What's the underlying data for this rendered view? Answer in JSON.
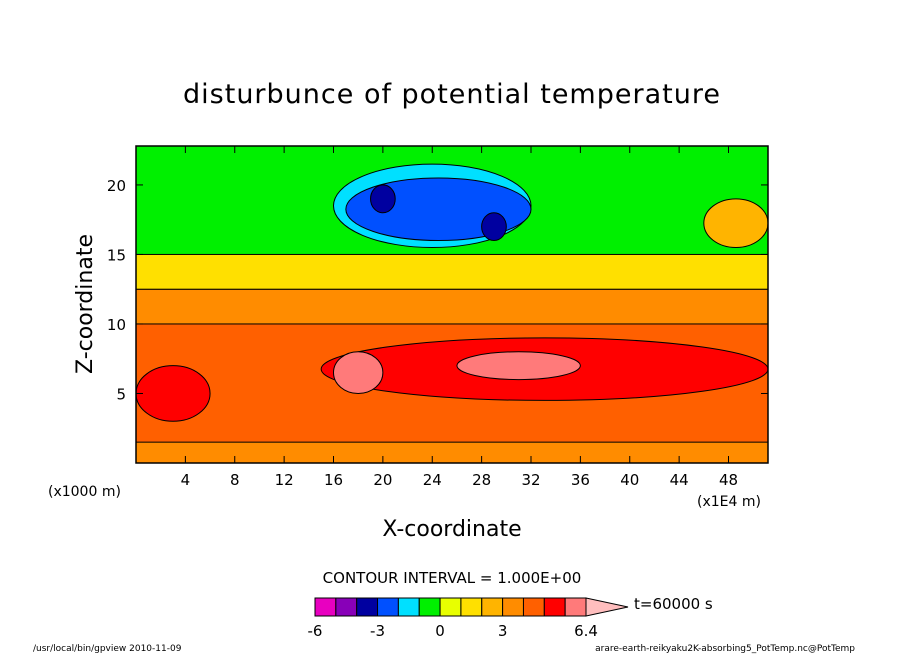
{
  "chart_data": {
    "type": "heatmap",
    "title": "disturbunce of potential temperature",
    "xlabel": "X-coordinate",
    "ylabel": "Z-coordinate",
    "x_ticks": [
      "4",
      "8",
      "12",
      "16",
      "20",
      "24",
      "28",
      "32",
      "36",
      "40",
      "44",
      "48"
    ],
    "y_ticks": [
      "5",
      "10",
      "15",
      "20"
    ],
    "x_tick_values": [
      4,
      8,
      12,
      16,
      20,
      24,
      28,
      32,
      36,
      40,
      44,
      48
    ],
    "y_tick_values": [
      5,
      10,
      15,
      20
    ],
    "xlim": [
      0,
      51.2
    ],
    "ylim": [
      0,
      22.8
    ],
    "x_unit_label": "(x1000 m)",
    "x_scale_label": "(x1E4 m)",
    "contour_interval_label": "CONTOUR INTERVAL = 1.000E+00",
    "time_label": "t=60000 s",
    "colorbar": {
      "tick_labels": [
        "-6",
        "-3",
        "0",
        "3",
        "6.4"
      ],
      "tick_values": [
        -6,
        -3,
        0,
        3,
        6.4
      ],
      "levels": [
        -6,
        -5,
        -4,
        -3,
        -2,
        -1,
        0,
        1,
        2,
        3,
        4,
        5,
        6
      ],
      "colors": [
        "#e800c0",
        "#8800b8",
        "#0000a0",
        "#0050ff",
        "#00e0ff",
        "#00f000",
        "#e8ff00",
        "#ffe000",
        "#ffb400",
        "#ff8c00",
        "#ff6000",
        "#ff0000",
        "#ff7a7a",
        "#ffbebe"
      ]
    },
    "regions": [
      {
        "value": 3,
        "x": [
          0,
          51.2
        ],
        "z": [
          0,
          12.5
        ]
      },
      {
        "value": 4,
        "x": [
          0,
          51.2
        ],
        "z": [
          1.5,
          10
        ]
      },
      {
        "value": 5,
        "x": [
          0,
          6
        ],
        "z": [
          3,
          7
        ]
      },
      {
        "value": 5,
        "x": [
          15,
          51.2
        ],
        "z": [
          4.5,
          9
        ]
      },
      {
        "value": 6,
        "x": [
          16,
          20
        ],
        "z": [
          5,
          8
        ]
      },
      {
        "value": 6,
        "x": [
          26,
          36
        ],
        "z": [
          6,
          8
        ]
      },
      {
        "value": 1,
        "x": [
          0,
          51.2
        ],
        "z": [
          12.5,
          22.8
        ]
      },
      {
        "value": -1,
        "x": [
          0,
          51.2
        ],
        "z": [
          15,
          22.8
        ]
      },
      {
        "value": -2,
        "x": [
          16,
          32
        ],
        "z": [
          15.5,
          21.5
        ]
      },
      {
        "value": -3,
        "x": [
          17,
          32
        ],
        "z": [
          16,
          20.5
        ]
      },
      {
        "value": -4,
        "x": [
          19,
          21
        ],
        "z": [
          18,
          20
        ]
      },
      {
        "value": -4,
        "x": [
          28,
          30
        ],
        "z": [
          16,
          18
        ]
      },
      {
        "value": 2,
        "x": [
          46,
          51.2
        ],
        "z": [
          15.5,
          19
        ]
      }
    ]
  },
  "footer": {
    "left": "/usr/local/bin/gpview  2010-11-09",
    "right": "arare-earth-reikyaku2K-absorbing5_PotTemp.nc@PotTemp"
  }
}
